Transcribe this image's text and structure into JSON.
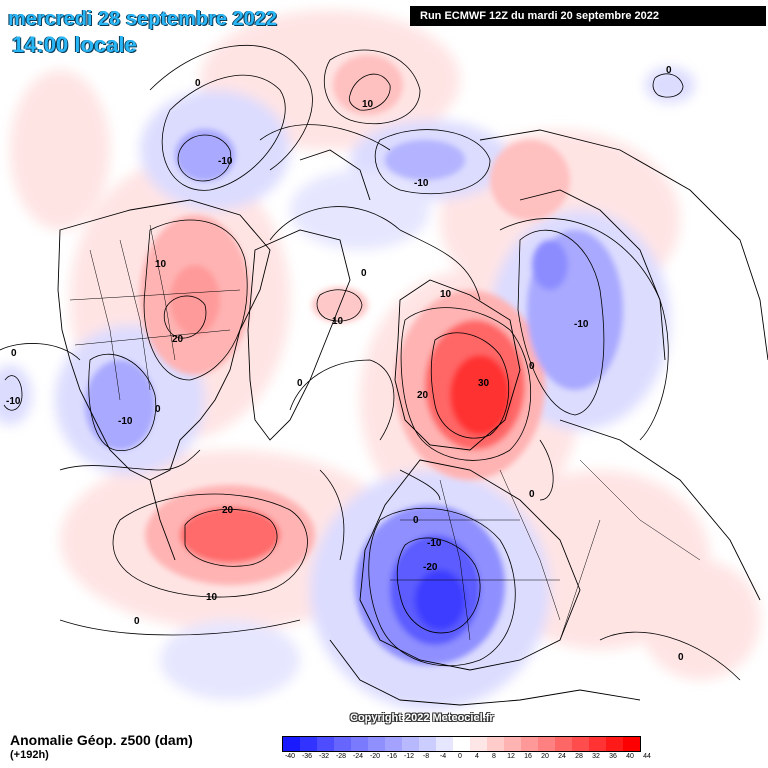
{
  "header": {
    "date_line": "mercredi 28 septembre 2022",
    "time_line": "14:00 locale",
    "run_info": "Run ECMWF 12Z du mardi 20 septembre 2022"
  },
  "footer": {
    "variable_title": "Anomalie Géop. z500 (dam)",
    "lead_time": "(+192h)",
    "copyright": "Copyright 2022 Meteociel.fr"
  },
  "legend": {
    "ticks": [
      "-40",
      "-36",
      "-32",
      "-28",
      "-24",
      "-20",
      "-16",
      "-12",
      "-8",
      "-4",
      "0",
      "4",
      "8",
      "12",
      "16",
      "20",
      "24",
      "28",
      "32",
      "36",
      "40",
      "44"
    ],
    "colors": [
      "#1a1aff",
      "#3333ff",
      "#4d4dff",
      "#6666ff",
      "#7a7aff",
      "#8f8fff",
      "#a3a3ff",
      "#b8b8ff",
      "#cccdff",
      "#e6e6ff",
      "#ffffff",
      "#ffe6e6",
      "#ffcccc",
      "#ffb3b3",
      "#ff9999",
      "#ff8080",
      "#ff6666",
      "#ff4d4d",
      "#ff3333",
      "#ff1a1a",
      "#ff0000"
    ]
  },
  "contour_labels": [
    {
      "text": "0",
      "name": "label-0-northwest"
    },
    {
      "text": "-10",
      "name": "label-minus10-north-pacific"
    },
    {
      "text": "10",
      "name": "label-10-north"
    },
    {
      "text": "0",
      "name": "label-0-northeast"
    },
    {
      "text": "-10",
      "name": "label-minus10-north-central"
    },
    {
      "text": "10",
      "name": "label-10-canada"
    },
    {
      "text": "20",
      "name": "label-20-canada"
    },
    {
      "text": "0",
      "name": "label-0-arctic"
    },
    {
      "text": "10",
      "name": "label-10-arctic"
    },
    {
      "text": "10",
      "name": "label-10-scandinavia-north"
    },
    {
      "text": "-10",
      "name": "label-minus10-east"
    },
    {
      "text": "0",
      "name": "label-0-west-edge"
    },
    {
      "text": "-10",
      "name": "label-minus10-west-edge"
    },
    {
      "text": "-10",
      "name": "label-minus10-us"
    },
    {
      "text": "0",
      "name": "label-0-atlantic-west"
    },
    {
      "text": "0",
      "name": "label-0-greenland"
    },
    {
      "text": "20",
      "name": "label-20-scandinavia"
    },
    {
      "text": "30",
      "name": "label-30-scandinavia"
    },
    {
      "text": "0",
      "name": "label-0-russia"
    },
    {
      "text": "0",
      "name": "label-0-east-europe"
    },
    {
      "text": "20",
      "name": "label-20-atlantic"
    },
    {
      "text": "10",
      "name": "label-10-atlantic"
    },
    {
      "text": "0",
      "name": "label-0-iberia"
    },
    {
      "text": "-10",
      "name": "label-minus10-europe"
    },
    {
      "text": "-20",
      "name": "label-minus20-europe"
    },
    {
      "text": "0",
      "name": "label-0-southwest"
    },
    {
      "text": "0",
      "name": "label-0-southeast"
    }
  ]
}
